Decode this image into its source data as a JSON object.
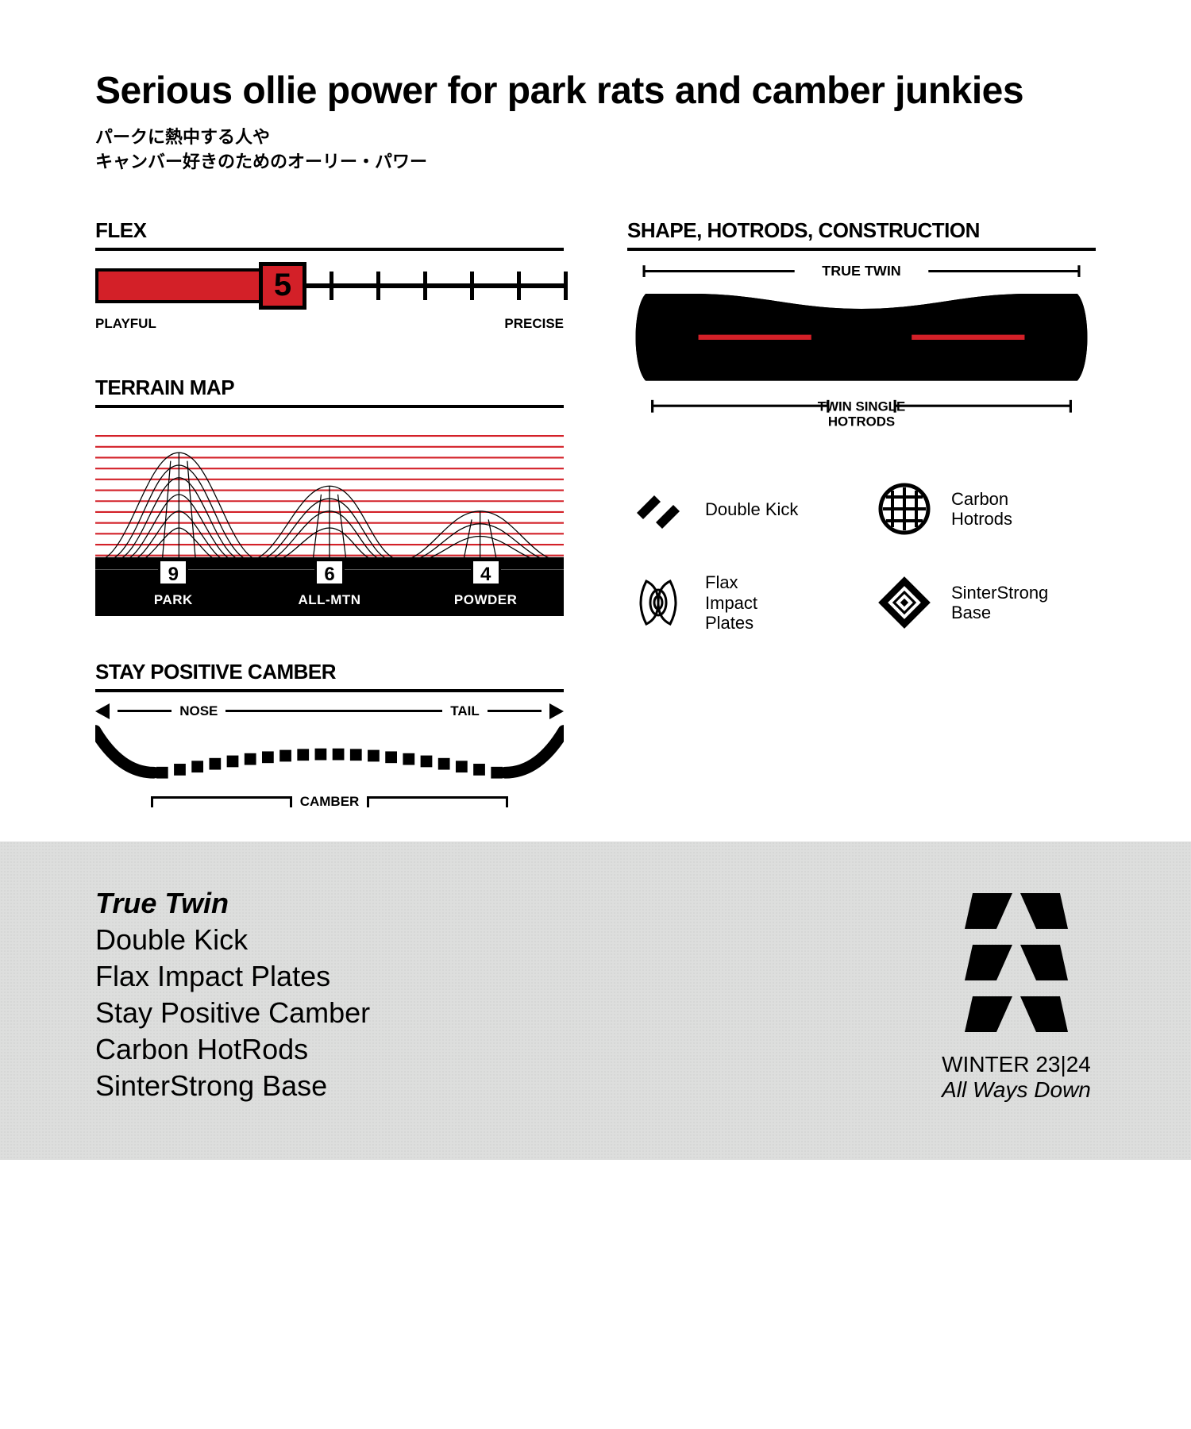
{
  "headline": "Serious ollie power for park rats and camber junkies",
  "subhead_jp_1": "パークに熱中する人や",
  "subhead_jp_2": "キャンバー好きのためのオーリー・パワー",
  "colors": {
    "accent": "#d32028",
    "black": "#000000",
    "footer_bg": "#dddedd"
  },
  "flex": {
    "title": "FLEX",
    "value": 5,
    "max": 11,
    "left_label": "PLAYFUL",
    "right_label": "PRECISE"
  },
  "terrain": {
    "title": "TERRAIN MAP",
    "items": [
      {
        "label": "PARK",
        "score": 9
      },
      {
        "label": "ALL-MTN",
        "score": 6
      },
      {
        "label": "POWDER",
        "score": 4
      }
    ],
    "line_color": "#d32028"
  },
  "camber": {
    "title": "STAY POSITIVE CAMBER",
    "nose": "NOSE",
    "tail": "TAIL",
    "label": "CAMBER"
  },
  "shape": {
    "title": "SHAPE, HOTRODS, CONSTRUCTION",
    "true_twin": "TRUE TWIN",
    "hotrods": "TWIN SINGLE HOTRODS",
    "hotrod_color": "#d32028"
  },
  "features": [
    {
      "icon": "double-kick",
      "label": "Double Kick"
    },
    {
      "icon": "carbon-hotrods",
      "label": "Carbon Hotrods"
    },
    {
      "icon": "flax-impact",
      "label": "Flax Impact Plates"
    },
    {
      "icon": "sinterstrong",
      "label": "SinterStrong Base"
    }
  ],
  "specs": [
    "True Twin",
    "Double Kick",
    "Flax Impact Plates",
    "Stay Positive Camber",
    "Carbon HotRods",
    "SinterStrong Base"
  ],
  "brand": {
    "season": "WINTER 23|24",
    "tagline": "All Ways Down"
  }
}
